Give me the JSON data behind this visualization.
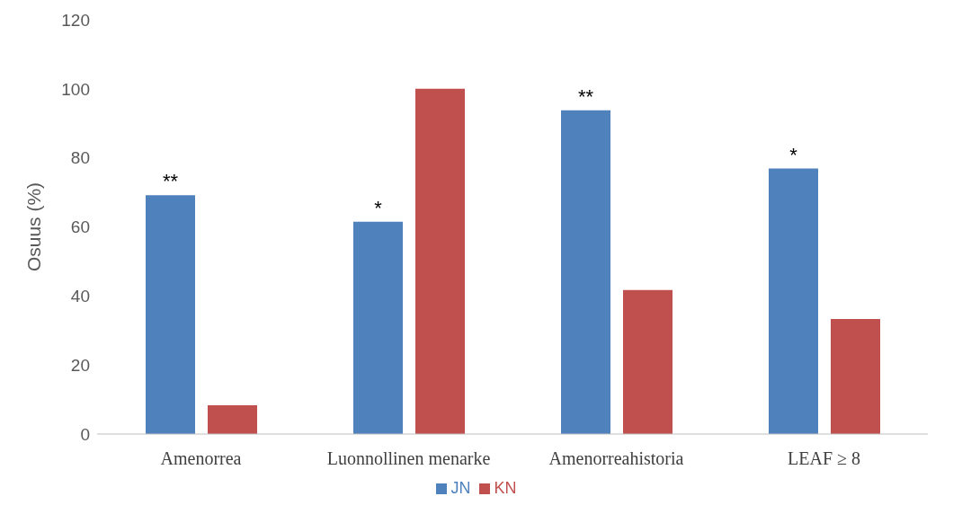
{
  "chart_data": {
    "type": "bar",
    "ylabel": "Osuus (%)",
    "categories": [
      "Amenorrea",
      "Luonnollinen menarke",
      "Amenorreahistoria",
      "LEAF ≥ 8"
    ],
    "series": [
      {
        "name": "JN",
        "color": "#4f81bd",
        "values": [
          69.2,
          61.5,
          93.8,
          76.9
        ]
      },
      {
        "name": "KN",
        "color": "#c0504d",
        "values": [
          8.3,
          100,
          41.7,
          33.3
        ]
      }
    ],
    "ylim": [
      0,
      120
    ],
    "yticks": [
      0,
      20,
      40,
      60,
      80,
      100,
      120
    ],
    "grid": false,
    "legend": "bottom",
    "annotations": [
      "**",
      "*",
      "**",
      "*"
    ]
  }
}
